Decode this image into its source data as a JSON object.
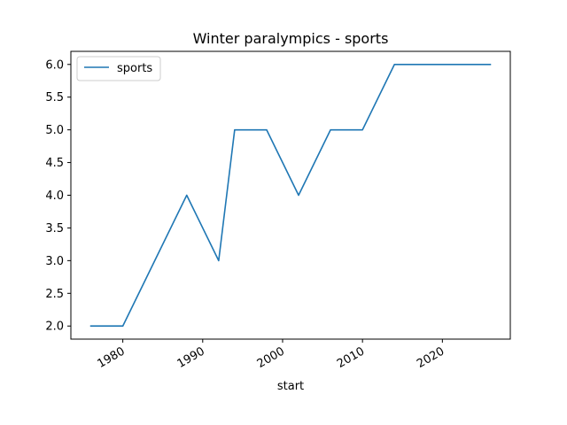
{
  "chart_data": {
    "type": "line",
    "title": "Winter paralympics - sports",
    "xlabel": "start",
    "ylabel": "",
    "x": [
      1976,
      1980,
      1984,
      1988,
      1992,
      1994,
      1998,
      2002,
      2006,
      2010,
      2014,
      2018,
      2022,
      2026
    ],
    "series": [
      {
        "name": "sports",
        "values": [
          2,
          2,
          3,
          4,
          3,
          5,
          5,
          4,
          5,
          5,
          6,
          6,
          6,
          6
        ],
        "color": "#1f77b4"
      }
    ],
    "xlim": [
      1973.5,
      2028.5
    ],
    "ylim": [
      1.8,
      6.2
    ],
    "x_ticks": [
      1980,
      1990,
      2000,
      2010,
      2020
    ],
    "x_tick_labels": [
      "1980",
      "1990",
      "2000",
      "2010",
      "2020"
    ],
    "y_ticks": [
      2.0,
      2.5,
      3.0,
      3.5,
      4.0,
      4.5,
      5.0,
      5.5,
      6.0
    ],
    "y_tick_labels": [
      "2.0",
      "2.5",
      "3.0",
      "3.5",
      "4.0",
      "4.5",
      "5.0",
      "5.5",
      "6.0"
    ],
    "grid": false,
    "legend": "top-left"
  }
}
